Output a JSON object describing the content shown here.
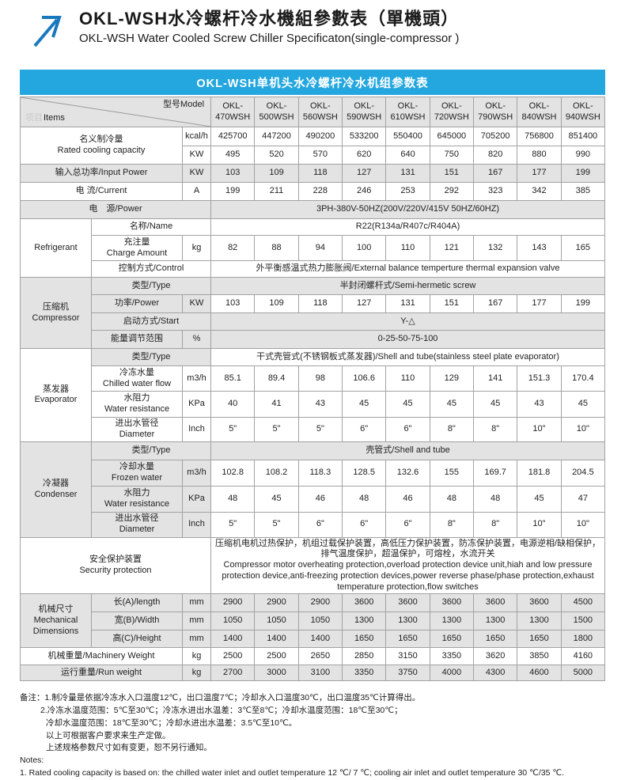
{
  "colors": {
    "banner_blue": "#24a7df",
    "arrow_blue": "#1878be",
    "band_gray": "#e3e3e3"
  },
  "header": {
    "title_zh": "OKL-WSH水冷螺杆冷水機組參數表（單機頭）",
    "title_en": "OKL-WSH Water Cooled Screw Chiller Specificaton(single-compressor )"
  },
  "banner": "OKL-WSH单机头水冷螺杆冷水机组参数表",
  "table": {
    "corner": {
      "items_zh": "项目",
      "items_en": "Items",
      "model": "型号Model"
    },
    "models": [
      "OKL-\n470WSH",
      "OKL-\n500WSH",
      "OKL-\n560WSH",
      "OKL-\n590WSH",
      "OKL-\n610WSH",
      "OKL-\n720WSH",
      "OKL-\n790WSH",
      "OKL-\n840WSH",
      "OKL-\n940WSH"
    ],
    "rows": {
      "capacity": {
        "label": "名义制冷量\nRated cooling capacity",
        "sub": [
          {
            "unit": "kcal/h",
            "values": [
              "425700",
              "447200",
              "490200",
              "533200",
              "550400",
              "645000",
              "705200",
              "756800",
              "851400"
            ]
          },
          {
            "unit": "KW",
            "values": [
              "495",
              "520",
              "570",
              "620",
              "640",
              "750",
              "820",
              "880",
              "990"
            ]
          }
        ]
      },
      "input_power": {
        "label": "输入总功率/Input Power",
        "unit": "KW",
        "values": [
          "103",
          "109",
          "118",
          "127",
          "131",
          "151",
          "167",
          "177",
          "199"
        ]
      },
      "current": {
        "label": "电  流/Current",
        "unit": "A",
        "values": [
          "199",
          "211",
          "228",
          "246",
          "253",
          "292",
          "323",
          "342",
          "385"
        ]
      },
      "power_source": {
        "label": "电　源/Power",
        "value": "3PH-380V-50HZ(200V/220V/415V  50HZ/60HZ)"
      },
      "refrigerant": {
        "group": "Refrigerant",
        "name": {
          "label": "名称/Name",
          "value": "R22(R134a/R407c/R404A)"
        },
        "charge": {
          "label": "充注量\nCharge Amount",
          "unit": "kg",
          "values": [
            "82",
            "88",
            "94",
            "100",
            "110",
            "121",
            "132",
            "143",
            "165"
          ]
        },
        "control": {
          "label": "控制方式/Control",
          "value": "外平衡感温式热力膨胀阀/External balance temperture thermal expansion valve"
        }
      },
      "compressor": {
        "group": "压缩机\nCompressor",
        "type": {
          "label": "类型/Type",
          "value": "半封闭螺杆式/Semi-hermetic screw"
        },
        "power": {
          "label": "功率/Power",
          "unit": "KW",
          "values": [
            "103",
            "109",
            "118",
            "127",
            "131",
            "151",
            "167",
            "177",
            "199"
          ]
        },
        "start": {
          "label": "启动方式/Start",
          "value": "Y-△"
        },
        "energy": {
          "label": "能量调节范围",
          "unit": "%",
          "value": "0-25-50-75-100"
        }
      },
      "evaporator": {
        "group": "蒸发器\nEvaporator",
        "type": {
          "label": "类型/Type",
          "value": "干式壳管式(不锈钢板式蒸发器)/Shell and tube(stainless steel plate evaporator)"
        },
        "flow": {
          "label": "冷冻水量\nChilled water flow",
          "unit": "m3/h",
          "values": [
            "85.1",
            "89.4",
            "98",
            "106.6",
            "110",
            "129",
            "141",
            "151.3",
            "170.4"
          ]
        },
        "resistance": {
          "label": "水阻力\nWater resistance",
          "unit": "KPa",
          "values": [
            "40",
            "41",
            "43",
            "45",
            "45",
            "45",
            "45",
            "43",
            "45"
          ]
        },
        "diameter": {
          "label": "进出水管径\nDiameter",
          "unit": "Inch",
          "values": [
            "5\"",
            "5\"",
            "5\"",
            "6\"",
            "6\"",
            "8\"",
            "8\"",
            "10\"",
            "10\""
          ]
        }
      },
      "condenser": {
        "group": "冷凝器\nCondenser",
        "type": {
          "label": "类型/Type",
          "value": "壳管式/Shell and tube"
        },
        "flow": {
          "label": "冷却水量\nFrozen water",
          "unit": "m3/h",
          "values": [
            "102.8",
            "108.2",
            "118.3",
            "128.5",
            "132.6",
            "155",
            "169.7",
            "181.8",
            "204.5"
          ]
        },
        "resistance": {
          "label": "水阻力\nWater resistance",
          "unit": "KPa",
          "values": [
            "48",
            "45",
            "46",
            "48",
            "46",
            "48",
            "48",
            "45",
            "47"
          ]
        },
        "diameter": {
          "label": "进出水管径\nDiameter",
          "unit": "Inch",
          "values": [
            "5\"",
            "5\"",
            "6\"",
            "6\"",
            "6\"",
            "8\"",
            "8\"",
            "10\"",
            "10\""
          ]
        }
      },
      "security": {
        "label": "安全保护装置\nSecurity protection",
        "value": "压缩机电机过热保护，机组过载保护装置，高低压力保护装置，防冻保护装置，电源逆相/缺相保护，排气温度保护，超温保护，可熔栓，水流开关\nCompressor motor overheating protection,overload protection device unit,hiah and low pressure protection device,anti-freezing protection devices,power reverse phase/phase protection,exhaust temperature protection,flow switches"
      },
      "dimensions": {
        "group": "机械尺寸\nMechanical\nDimensions",
        "length": {
          "label": "长(A)/length",
          "unit": "mm",
          "values": [
            "2900",
            "2900",
            "2900",
            "3600",
            "3600",
            "3600",
            "3600",
            "3600",
            "4500"
          ]
        },
        "width": {
          "label": "宽(B)/Width",
          "unit": "mm",
          "values": [
            "1050",
            "1050",
            "1050",
            "1300",
            "1300",
            "1300",
            "1300",
            "1300",
            "1500"
          ]
        },
        "height": {
          "label": "高(C)/Height",
          "unit": "mm",
          "values": [
            "1400",
            "1400",
            "1400",
            "1650",
            "1650",
            "1650",
            "1650",
            "1650",
            "1800"
          ]
        }
      },
      "machine_weight": {
        "label": "机械重量/Machinery Weight",
        "unit": "kg",
        "values": [
          "2500",
          "2500",
          "2650",
          "2850",
          "3150",
          "3350",
          "3620",
          "3850",
          "4160"
        ]
      },
      "run_weight": {
        "label": "运行重量/Run weight",
        "unit": "kg",
        "values": [
          "2700",
          "3000",
          "3100",
          "3350",
          "3750",
          "4000",
          "4300",
          "4600",
          "5000"
        ]
      }
    }
  },
  "notes": {
    "lines": [
      "备注：1.制冷量是依据冷冻水入口温度12℃，出口温度7℃；冷却水入口温度30℃，出口温度35℃计算得出。",
      "2.冷冻水温度范围：5℃至30℃；冷冻水进出水温差：3℃至8℃；冷却水温度范围：18℃至30℃；",
      "冷却水温度范围：18℃至30℃；冷却水进出水温差：3.5℃至10℃。",
      "以上可根据客户要求来生产定做。",
      "上述规格参数尺寸如有变更，恕不另行通知。",
      "Notes:",
      "1. Rated cooling capacity is based on: the chilled water inlet and outlet temperature 12 ℃/ 7 ℃; cooling air inlet and outlet temperature 30 ℃/35 ℃."
    ]
  }
}
